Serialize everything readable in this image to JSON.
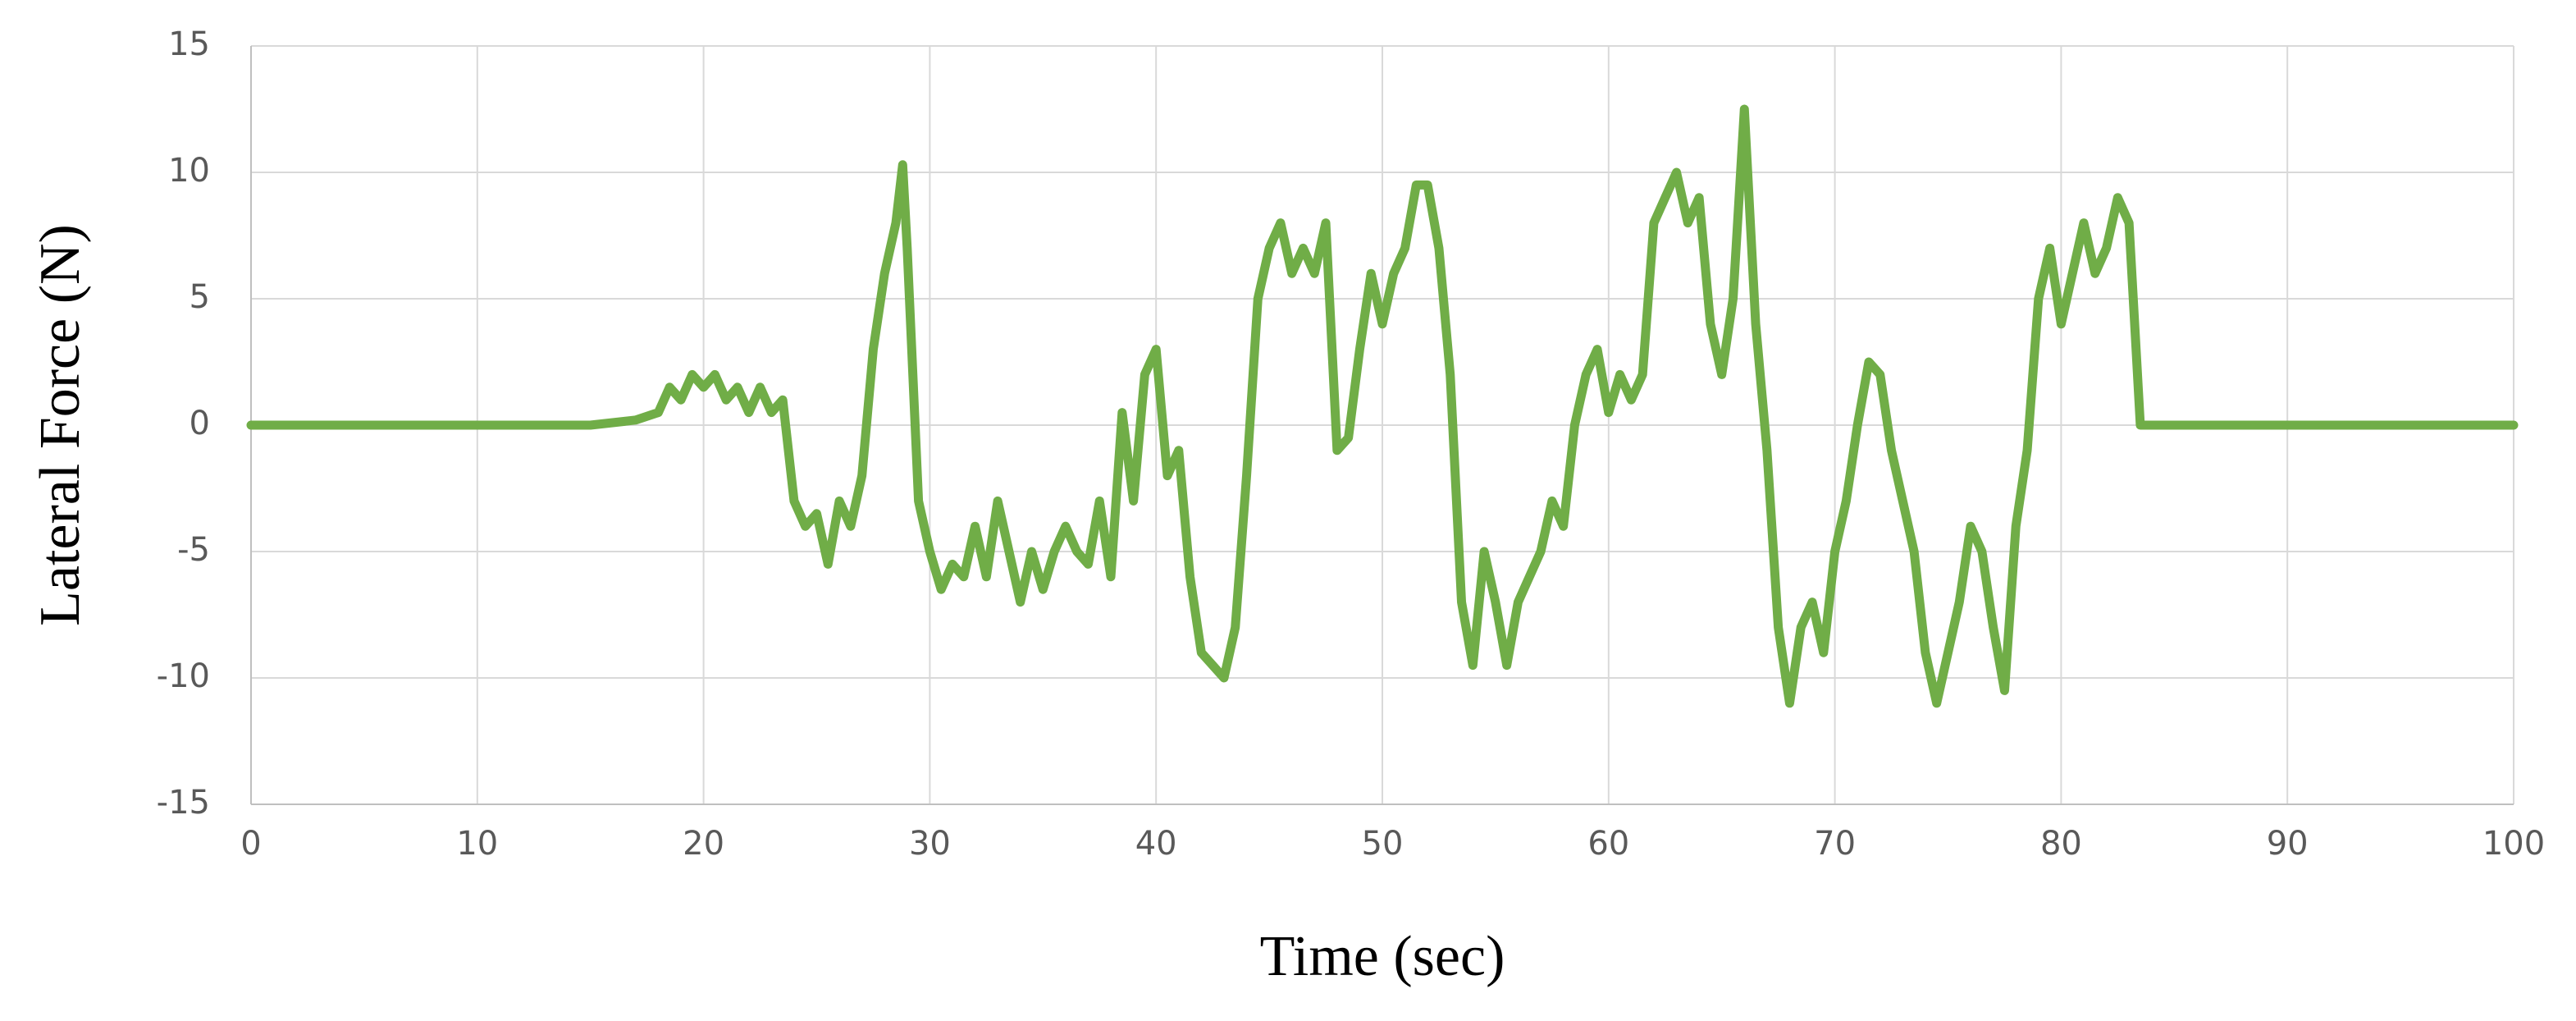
{
  "chart_data": {
    "type": "line",
    "x_label": "Time (sec)",
    "y_label": "Lateral Force (N)",
    "xlim": [
      0,
      100
    ],
    "xticks": [
      0,
      10,
      20,
      30,
      40,
      50,
      60,
      70,
      80,
      90,
      100
    ],
    "ylim": [
      -15,
      15
    ],
    "yticks": [
      -15,
      -10,
      -5,
      0,
      5,
      10,
      15
    ],
    "grid": true,
    "x": [
      0,
      5,
      10,
      15,
      17,
      18,
      18.5,
      19,
      19.5,
      20,
      20.5,
      21,
      21.5,
      22,
      22.5,
      23,
      23.5,
      24,
      24.5,
      25,
      25.5,
      26,
      26.5,
      27,
      27.5,
      28,
      28.5,
      28.8,
      29,
      29.5,
      30,
      30.5,
      31,
      31.5,
      32,
      32.5,
      33,
      33.5,
      34,
      34.5,
      35,
      35.5,
      36,
      36.5,
      37,
      37.5,
      38,
      38.5,
      39,
      39.5,
      40,
      40.5,
      41,
      41.5,
      42,
      42.5,
      43,
      43.5,
      44,
      44.5,
      45,
      45.5,
      46,
      46.5,
      47,
      47.5,
      48,
      48.5,
      49,
      49.5,
      50,
      50.5,
      51,
      51.5,
      52,
      52.5,
      53,
      53.5,
      54,
      54.5,
      55,
      55.5,
      56,
      56.5,
      57,
      57.5,
      58,
      58.5,
      59,
      59.5,
      60,
      60.5,
      61,
      61.5,
      62,
      62.5,
      63,
      63.5,
      64,
      64.5,
      65,
      65.5,
      66,
      66.5,
      67,
      67.5,
      68,
      68.5,
      69,
      69.5,
      70,
      70.5,
      71,
      71.5,
      72,
      72.5,
      73,
      73.5,
      74,
      74.5,
      75,
      75.5,
      76,
      76.5,
      77,
      77.5,
      78,
      78.5,
      79,
      79.5,
      80,
      80.5,
      81,
      81.5,
      82,
      82.5,
      83,
      83.5,
      84,
      90,
      95,
      100
    ],
    "series": [
      {
        "name": "Lateral Force",
        "color": "#70ad47",
        "values": [
          0,
          0,
          0,
          0,
          0.2,
          0.5,
          1.5,
          1,
          2,
          1.5,
          2,
          1,
          1.5,
          0.5,
          1.5,
          0.5,
          1,
          -3,
          -4,
          -3.5,
          -5.5,
          -3,
          -4,
          -2,
          3,
          6,
          8,
          10.3,
          7,
          -3,
          -5,
          -6.5,
          -5.5,
          -6,
          -4,
          -6,
          -3,
          -5,
          -7,
          -5,
          -6.5,
          -5,
          -4,
          -5,
          -5.5,
          -3,
          -6,
          0.5,
          -3,
          2,
          3,
          -2,
          -1,
          -6,
          -9,
          -9.5,
          -10,
          -8,
          -2,
          5,
          7,
          8,
          6,
          7,
          6,
          8,
          -1,
          -0.5,
          3,
          6,
          4,
          6,
          7,
          9.5,
          9.5,
          7,
          2,
          -7,
          -9.5,
          -5,
          -7,
          -9.5,
          -7,
          -6,
          -5,
          -3,
          -4,
          0,
          2,
          3,
          0.5,
          2,
          1,
          2,
          8,
          9,
          10,
          8,
          9,
          4,
          2,
          5,
          12.5,
          4,
          -1,
          -8,
          -11,
          -8,
          -7,
          -9,
          -5,
          -3,
          0,
          2.5,
          2,
          -1,
          -3,
          -5,
          -9,
          -11,
          -9,
          -7,
          -4,
          -5,
          -8,
          -10.5,
          -4,
          -1,
          5,
          7,
          4,
          6,
          8,
          6,
          7,
          9,
          8,
          0,
          0,
          0,
          0,
          0
        ]
      }
    ]
  }
}
